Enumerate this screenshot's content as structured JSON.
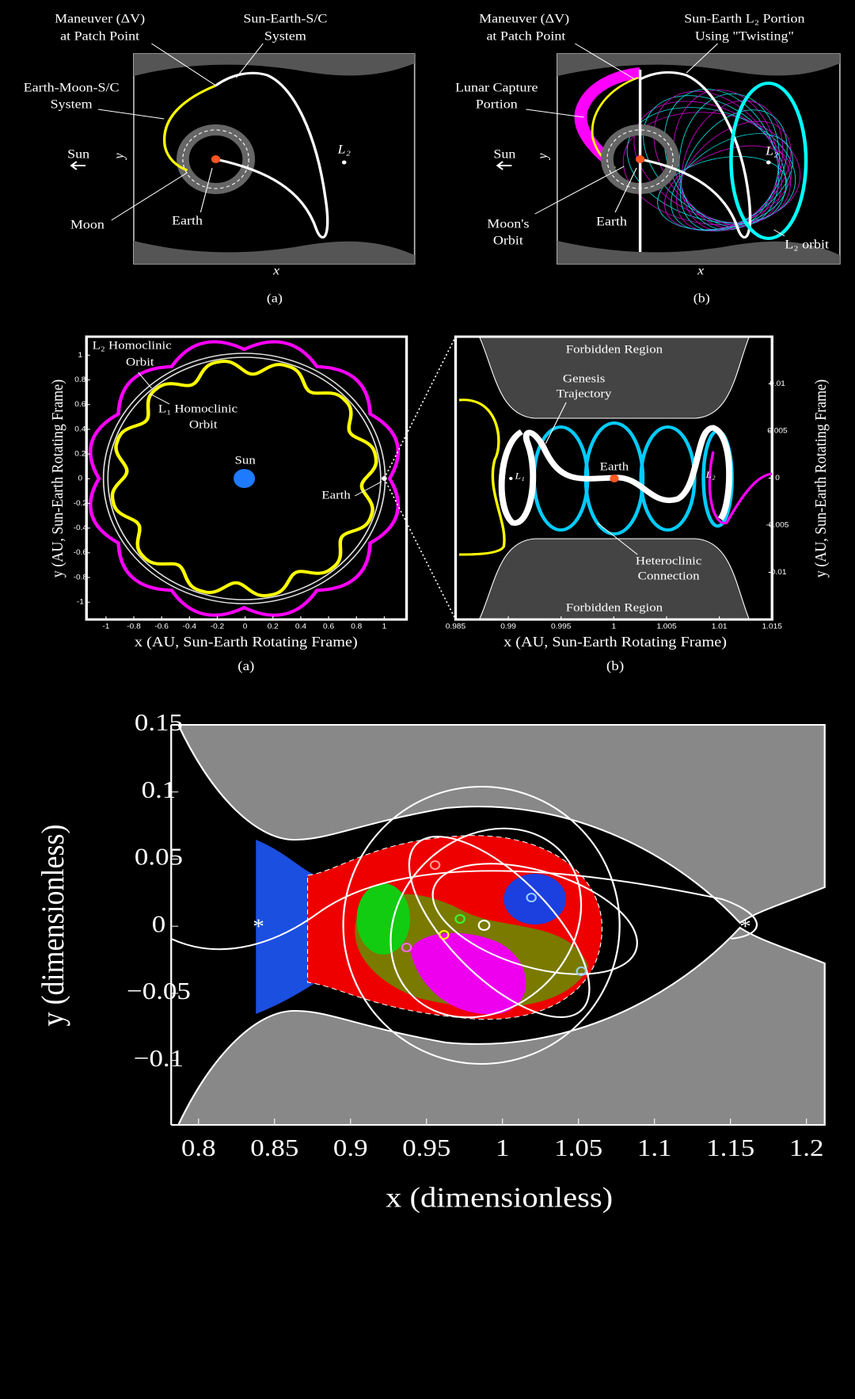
{
  "diagrams": [
    {
      "labels": [
        "Maneuver (ΔV)",
        "at Patch Point",
        "Sun-Earth-S/C",
        "System",
        "Earth-Moon-S/C",
        "System",
        "Sun",
        "y",
        "L₂",
        "Moon",
        "Earth",
        "x"
      ],
      "panel": "(a)"
    },
    {
      "labels": [
        "Maneuver (ΔV)",
        "at Patch Point",
        "Sun-Earth L₂ Portion",
        "Using \"Twisting\"",
        "Lunar Capture",
        "Portion",
        "Sun",
        "y",
        "L₂",
        "Moon's",
        "Orbit",
        "Earth",
        "L₂ orbit",
        "x"
      ],
      "panel": "(b)"
    }
  ],
  "chart_data": [
    {
      "type": "line",
      "x_label": "x (AU, Sun-Earth Rotating Frame)",
      "y_label": "y (AU, Sun-Earth Rotating Frame)",
      "panel": "(a)",
      "xlim": [
        -1.14,
        1.16
      ],
      "ylim": [
        -1.14,
        1.15
      ],
      "xticks": [
        -1,
        -0.8,
        -0.6,
        -0.4,
        -0.2,
        0,
        0.2,
        0.4,
        0.6,
        0.8,
        1
      ],
      "yticks": [
        -1,
        -0.8,
        -0.6,
        -0.4,
        -0.2,
        0,
        0.2,
        0.4,
        0.6,
        0.8,
        1
      ],
      "annotations": [
        "L₂ Homoclinic",
        "Orbit",
        "L₁ Homoclinic",
        "Orbit",
        "Sun",
        "Earth"
      ]
    },
    {
      "type": "line",
      "x_label": "x (AU, Sun-Earth Rotating Frame)",
      "y_label": "y (AU, Sun-Earth Rotating Frame)",
      "panel": "(b)",
      "xlim": [
        0.985,
        1.015
      ],
      "ylim": [
        -0.015,
        0.015
      ],
      "xticks": [
        0.985,
        0.99,
        0.995,
        1,
        1.005,
        1.01,
        1.015
      ],
      "yticks": [
        -0.01,
        -0.005,
        0,
        0.005,
        0.01
      ],
      "annotations": [
        "Forbidden Region",
        "Forbidden Region",
        "Genesis",
        "Trajectory",
        "Earth",
        "L₁",
        "L₂",
        "Heteroclinic",
        "Connection"
      ]
    },
    {
      "type": "line",
      "x_label": "x (dimensionless)",
      "y_label": "y (dimensionless)",
      "xlim": [
        0.782,
        1.212
      ],
      "ylim": [
        -0.148,
        0.15
      ],
      "xticks": [
        0.8,
        0.85,
        0.9,
        0.95,
        1,
        1.05,
        1.1,
        1.15,
        1.2
      ],
      "yticks": [
        {
          "value": -0.1,
          "label": "−0.1"
        },
        {
          "value": -0.05,
          "label": "−0.05"
        },
        0,
        0.05,
        0.1,
        0.15
      ],
      "annotations": [
        "*",
        "*"
      ]
    }
  ]
}
